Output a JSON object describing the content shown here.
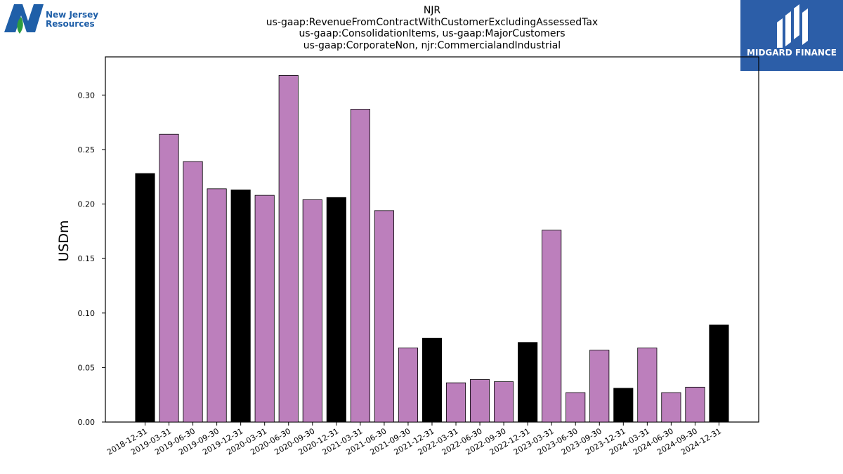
{
  "header": {
    "title_lines": [
      "NJR",
      "us-gaap:RevenueFromContractWithCustomerExcludingAssessedTax",
      "us-gaap:ConsolidationItems, us-gaap:MajorCustomers",
      "us-gaap:CorporateNon, njr:CommercialandIndustrial"
    ]
  },
  "logos": {
    "left": {
      "line1": "New Jersey",
      "line2": "Resources",
      "color": "#1f5fa8",
      "accent": "#2e9d3f"
    },
    "right": {
      "text": "MIDGARD FINANCE",
      "background": "#2c5ea8"
    }
  },
  "chart_data": {
    "type": "bar",
    "ylabel": "USDm",
    "xlabel": "",
    "ylim": [
      0,
      0.335
    ],
    "yticks": [
      "0.00",
      "0.05",
      "0.10",
      "0.15",
      "0.20",
      "0.25",
      "0.30"
    ],
    "grid": false,
    "colors": {
      "year_end": "#000000",
      "quarter": "#bc7fbc"
    },
    "categories": [
      "2018-12-31",
      "2019-03-31",
      "2019-06-30",
      "2019-09-30",
      "2019-12-31",
      "2020-03-31",
      "2020-06-30",
      "2020-09-30",
      "2020-12-31",
      "2021-03-31",
      "2021-06-30",
      "2021-09-30",
      "2021-12-31",
      "2022-03-31",
      "2022-06-30",
      "2022-09-30",
      "2022-12-31",
      "2023-03-31",
      "2023-06-30",
      "2023-09-30",
      "2023-12-31",
      "2024-03-31",
      "2024-06-30",
      "2024-09-30",
      "2024-12-31"
    ],
    "values": [
      0.228,
      0.264,
      0.239,
      0.214,
      0.213,
      0.208,
      0.318,
      0.204,
      0.206,
      0.287,
      0.194,
      0.068,
      0.077,
      0.036,
      0.039,
      0.037,
      0.073,
      0.176,
      0.027,
      0.066,
      0.031,
      0.068,
      0.027,
      0.032,
      0.089
    ]
  }
}
